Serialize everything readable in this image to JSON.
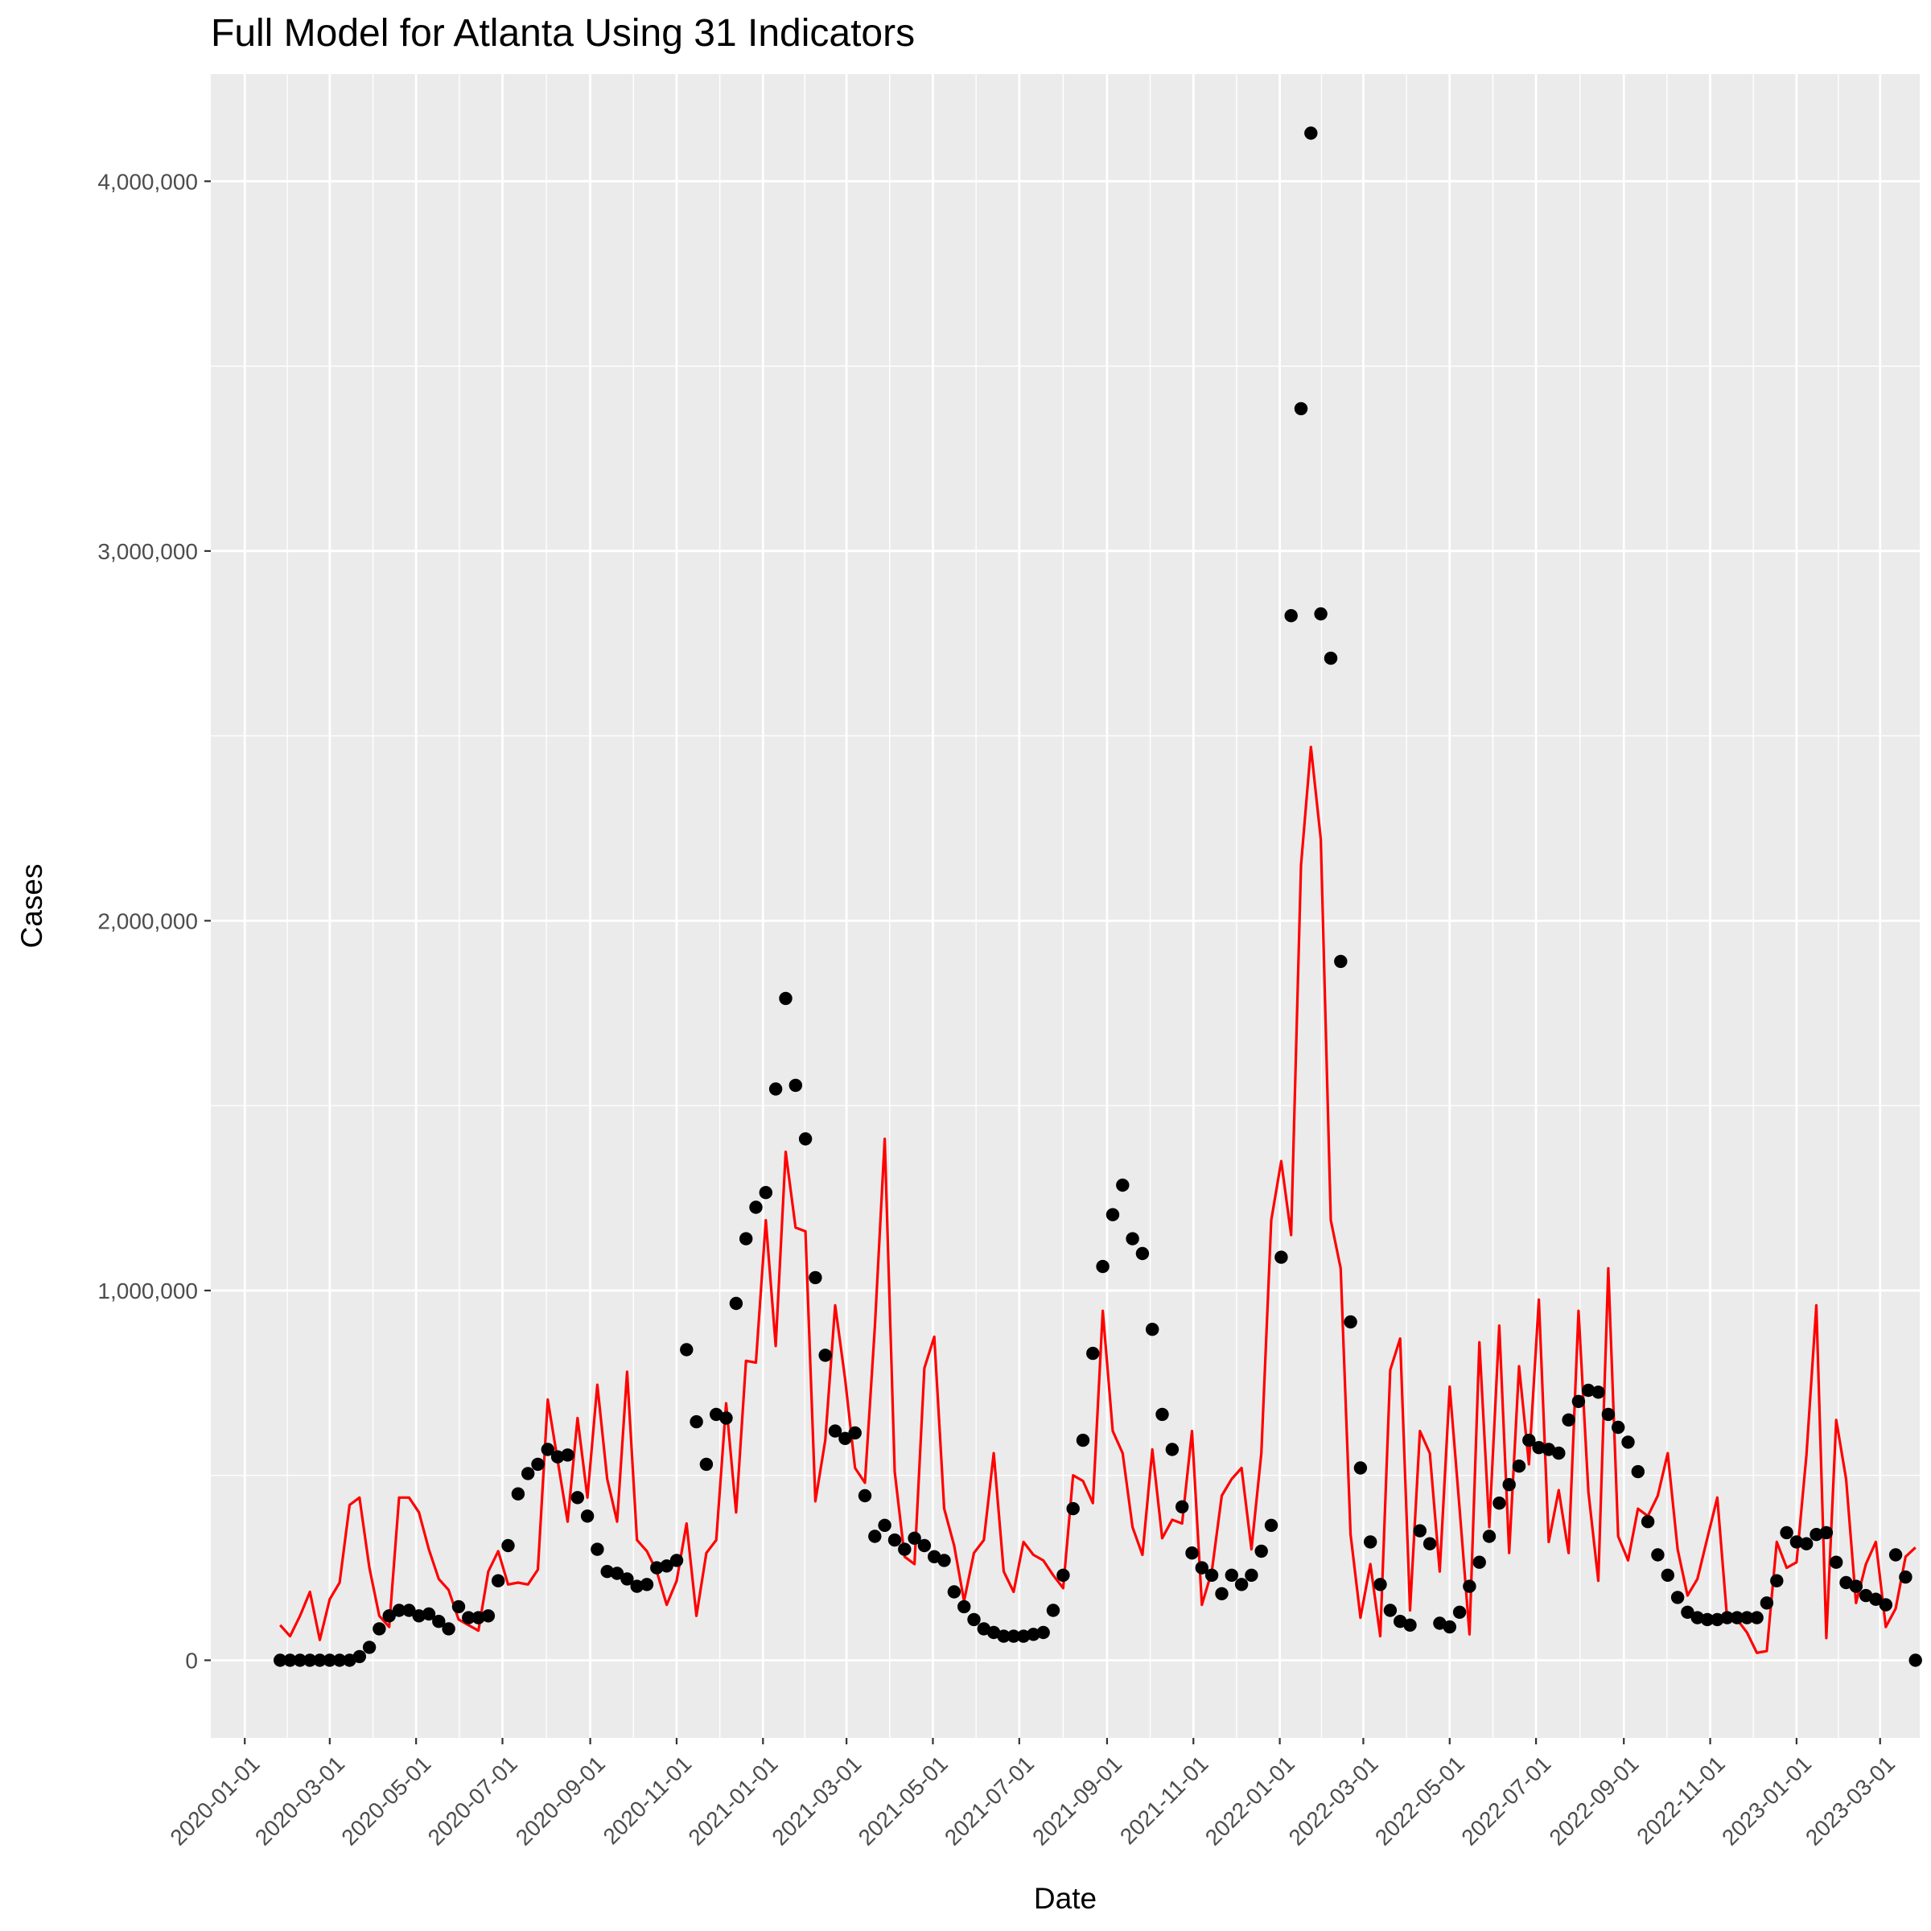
{
  "chart_data": {
    "type": "line",
    "title": "Full Model for Atlanta Using 31 Indicators",
    "xlabel": "Date",
    "ylabel": "Cases",
    "x_axis_type": "date",
    "xlim": [
      "2019-12-08",
      "2023-03-29"
    ],
    "ylim": [
      -210000,
      4290000
    ],
    "x_ticks": [
      "2020-01-01",
      "2020-03-01",
      "2020-05-01",
      "2020-07-01",
      "2020-09-01",
      "2020-11-01",
      "2021-01-01",
      "2021-03-01",
      "2021-05-01",
      "2021-07-01",
      "2021-09-01",
      "2021-11-01",
      "2022-01-01",
      "2022-03-01",
      "2022-05-01",
      "2022-07-01",
      "2022-09-01",
      "2022-11-01",
      "2023-01-01",
      "2023-03-01"
    ],
    "y_ticks": [
      0,
      1000000,
      2000000,
      3000000,
      4000000
    ],
    "y_tick_labels": [
      "0",
      "1,000,000",
      "2,000,000",
      "3,000,000",
      "4,000,000"
    ],
    "grid": true,
    "background": "#ebebeb",
    "colors": {
      "predicted": "#ff0000",
      "observed": "#000000",
      "grid": "#ffffff",
      "axis_text": "#4d4d4d"
    },
    "series": [
      {
        "kind": "points",
        "x_start": "2020-01-26",
        "step_days": 7,
        "values": [
          0,
          0,
          0,
          0,
          0,
          0,
          0,
          0,
          10000,
          35000,
          85000,
          120000,
          135000,
          135000,
          120000,
          125000,
          105000,
          85000,
          145000,
          115000,
          115000,
          120000,
          215000,
          310000,
          450000,
          505000,
          530000,
          570000,
          550000,
          555000,
          440000,
          390000,
          300000,
          240000,
          235000,
          220000,
          200000,
          205000,
          250000,
          255000,
          270000,
          840000,
          645000,
          530000,
          665000,
          655000,
          965000,
          1140000,
          1225000,
          1265000,
          1545000,
          1790000,
          1555000,
          1410000,
          1035000,
          825000,
          620000,
          600000,
          615000,
          445000,
          335000,
          365000,
          325000,
          300000,
          330000,
          310000,
          280000,
          270000,
          185000,
          145000,
          110000,
          85000,
          75000,
          65000,
          65000,
          65000,
          70000,
          75000,
          135000,
          230000,
          410000,
          595000,
          830000,
          1065000,
          1205000,
          1285000,
          1140000,
          1100000,
          895000,
          665000,
          570000,
          415000,
          290000,
          250000,
          230000,
          180000,
          230000,
          205000,
          230000,
          295000,
          365000,
          1090000,
          2825000,
          3385000,
          4130000,
          2830000,
          2710000,
          1890000,
          915000,
          520000,
          320000,
          205000,
          135000,
          105000,
          95000,
          350000,
          315000,
          100000,
          90000,
          130000,
          200000,
          265000,
          335000,
          425000,
          475000,
          525000,
          595000,
          575000,
          570000,
          560000,
          650000,
          700000,
          730000,
          725000,
          665000,
          630000,
          590000,
          510000,
          375000,
          285000,
          230000,
          170000,
          130000,
          115000,
          110000,
          110000,
          115000,
          115000,
          115000,
          115000,
          155000,
          215000,
          345000,
          320000,
          315000,
          340000,
          345000,
          265000,
          210000,
          200000,
          175000,
          165000,
          150000,
          285000,
          225000,
          0
        ]
      },
      {
        "kind": "line",
        "x_start": "2020-01-26",
        "step_days": 7,
        "values": [
          95000,
          65000,
          120000,
          185000,
          55000,
          165000,
          210000,
          420000,
          440000,
          250000,
          120000,
          90000,
          440000,
          440000,
          400000,
          300000,
          220000,
          190000,
          110000,
          95000,
          80000,
          240000,
          295000,
          205000,
          210000,
          205000,
          245000,
          705000,
          540000,
          375000,
          655000,
          440000,
          745000,
          490000,
          375000,
          780000,
          325000,
          295000,
          240000,
          150000,
          215000,
          370000,
          120000,
          290000,
          325000,
          695000,
          400000,
          810000,
          805000,
          1190000,
          850000,
          1375000,
          1170000,
          1160000,
          430000,
          595000,
          960000,
          760000,
          520000,
          480000,
          900000,
          1410000,
          510000,
          280000,
          260000,
          790000,
          875000,
          410000,
          310000,
          160000,
          290000,
          325000,
          560000,
          240000,
          185000,
          320000,
          285000,
          270000,
          230000,
          195000,
          500000,
          485000,
          425000,
          945000,
          620000,
          560000,
          360000,
          285000,
          570000,
          330000,
          380000,
          370000,
          620000,
          150000,
          240000,
          445000,
          490000,
          520000,
          300000,
          560000,
          1190000,
          1350000,
          1150000,
          2150000,
          2470000,
          2220000,
          1190000,
          1060000,
          340000,
          115000,
          260000,
          65000,
          785000,
          870000,
          135000,
          620000,
          560000,
          240000,
          740000,
          410000,
          70000,
          860000,
          360000,
          905000,
          290000,
          795000,
          530000,
          975000,
          320000,
          460000,
          290000,
          945000,
          455000,
          215000,
          1060000,
          335000,
          270000,
          410000,
          390000,
          445000,
          560000,
          300000,
          175000,
          220000,
          330000,
          440000,
          110000,
          110000,
          75000,
          20000,
          25000,
          320000,
          250000,
          265000,
          555000,
          960000,
          60000,
          650000,
          490000,
          155000,
          260000,
          320000,
          90000,
          140000,
          280000,
          305000
        ]
      }
    ]
  }
}
